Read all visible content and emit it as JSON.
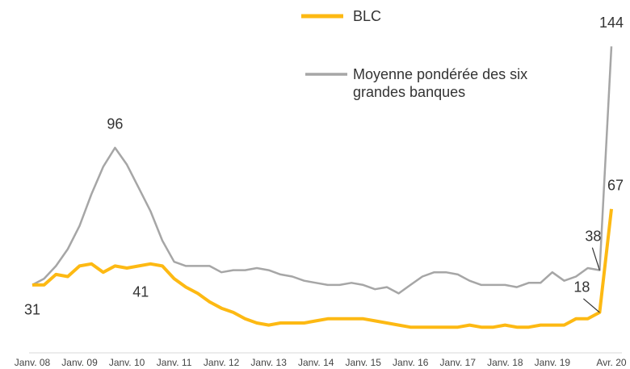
{
  "chart_data": {
    "type": "line",
    "categories": [
      "Janv. 08",
      null,
      null,
      null,
      "Janv. 09",
      null,
      null,
      null,
      "Janv. 10",
      null,
      null,
      null,
      "Janv. 11",
      null,
      null,
      null,
      "Janv. 12",
      null,
      null,
      null,
      "Janv. 13",
      null,
      null,
      null,
      "Janv. 14",
      null,
      null,
      null,
      "Janv. 15",
      null,
      null,
      null,
      "Janv. 16",
      null,
      null,
      null,
      "Janv. 17",
      null,
      null,
      null,
      "Janv. 18",
      null,
      null,
      null,
      "Janv. 19",
      null,
      null,
      null,
      null,
      "Avr. 20"
    ],
    "series": [
      {
        "name": "BLC",
        "color": "#fdb913",
        "values": [
          31,
          31,
          36,
          35,
          40,
          41,
          37,
          40,
          39,
          40,
          41,
          40,
          34,
          30,
          27,
          23,
          20,
          18,
          15,
          13,
          12,
          13,
          13,
          13,
          14,
          15,
          15,
          15,
          15,
          14,
          13,
          12,
          11,
          11,
          11,
          11,
          11,
          12,
          11,
          11,
          12,
          11,
          11,
          12,
          12,
          12,
          15,
          15,
          18,
          67
        ],
        "labeled": [
          0,
          10,
          48,
          49
        ]
      },
      {
        "name": "Moyenne pondérée des six grandes banques",
        "color": "#a6a6a6",
        "values": [
          31,
          34,
          40,
          48,
          59,
          74,
          87,
          96,
          88,
          77,
          66,
          52,
          42,
          40,
          40,
          40,
          37,
          38,
          38,
          39,
          38,
          36,
          35,
          33,
          32,
          31,
          31,
          32,
          31,
          29,
          30,
          27,
          31,
          35,
          37,
          37,
          36,
          33,
          31,
          31,
          31,
          30,
          32,
          32,
          37,
          33,
          35,
          39,
          38,
          144
        ],
        "labeled": [
          7,
          48,
          49
        ]
      }
    ]
  }
}
